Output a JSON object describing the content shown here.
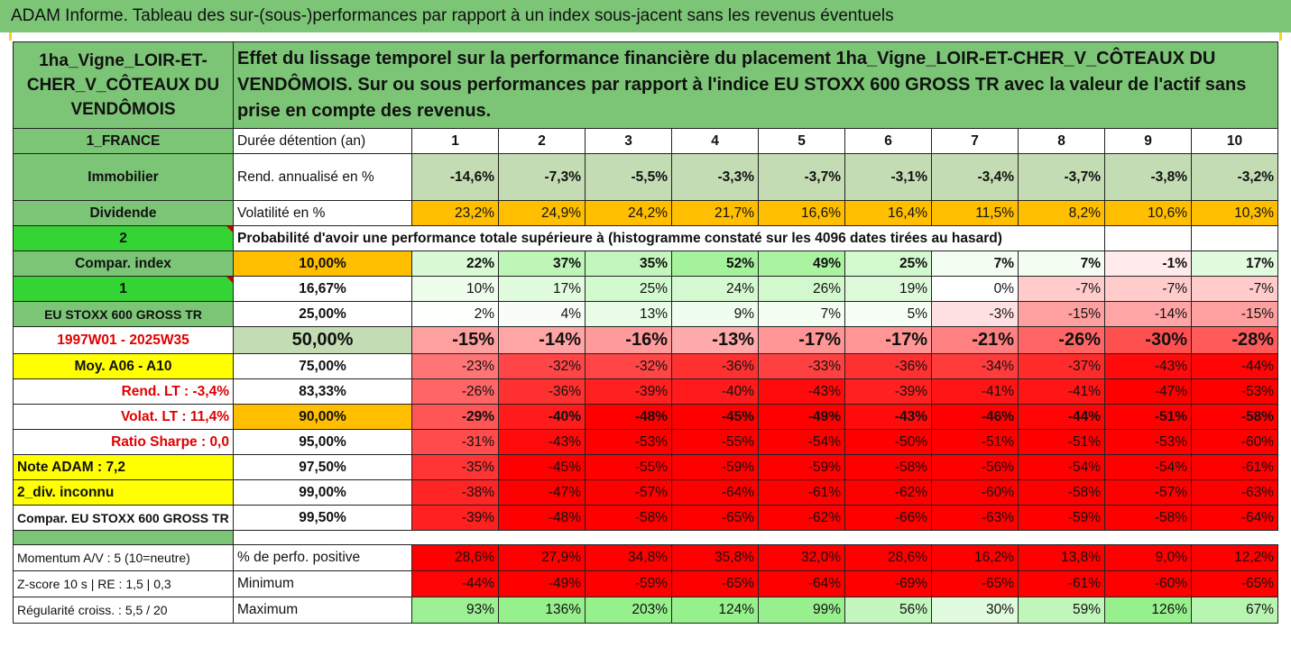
{
  "title": "ADAM Informe. Tableau des sur-(sous-)performances par rapport à un index sous-jacent sans les revenus éventuels",
  "asset_name": "1ha_Vigne_LOIR-ET-CHER_V_CÔTEAUX DU VENDÔMOIS",
  "heading": "Effet du lissage temporel sur la performance financière du placement 1ha_Vigne_LOIR-ET-CHER_V_CÔTEAUX DU VENDÔMOIS. Sur ou sous performances par rapport à l'indice EU STOXX 600 GROSS TR avec la valeur de l'actif sans prise en compte des revenus.",
  "left_labels": {
    "country": "1_FRANCE",
    "category": "Immobilier",
    "dividend": "Dividende",
    "num2": "2",
    "compar_index": "Compar. index",
    "num1": "1",
    "index_name": "EU STOXX 600 GROSS TR",
    "period": "1997W01 - 2025W35",
    "moy": "Moy. A06 - A10",
    "rend_lt": "Rend. LT :   -3,4%",
    "volat_lt": "Volat. LT :   11,4%",
    "sharpe": "Ratio Sharpe :   0,0",
    "note": "Note ADAM : 7,2",
    "div": "2_div. inconnu",
    "compar_full": "Compar. EU STOXX 600 GROSS TR",
    "momentum": "Momentum A/V : 5 (10=neutre)",
    "zscore": "Z-score 10 s  |  RE : 1,5  |  0,3",
    "regularite": "Régularité croiss. : 5,5 / 20"
  },
  "header": {
    "label": "Durée détention (an)",
    "years": [
      "1",
      "2",
      "3",
      "4",
      "5",
      "6",
      "7",
      "8",
      "9",
      "10"
    ]
  },
  "rend": {
    "label": "Rend. annualisé en %",
    "values": [
      "-14,6%",
      "-7,3%",
      "-5,5%",
      "-3,3%",
      "-3,7%",
      "-3,1%",
      "-3,4%",
      "-3,7%",
      "-3,8%",
      "-3,2%"
    ]
  },
  "volat": {
    "label": "Volatilité en %",
    "values": [
      "23,2%",
      "24,9%",
      "24,2%",
      "21,7%",
      "16,6%",
      "16,4%",
      "11,5%",
      "8,2%",
      "10,6%",
      "10,3%"
    ]
  },
  "proba_heading": "Probabilité d'avoir une performance totale supérieure à (histogramme constaté sur les 4096 dates tirées au hasard)",
  "quantiles": [
    {
      "p": "10,00%",
      "v": [
        "22%",
        "37%",
        "35%",
        "52%",
        "49%",
        "25%",
        "7%",
        "7%",
        "-1%",
        "17%"
      ]
    },
    {
      "p": "16,67%",
      "v": [
        "10%",
        "17%",
        "25%",
        "24%",
        "26%",
        "19%",
        "0%",
        "-7%",
        "-7%",
        "-7%"
      ]
    },
    {
      "p": "25,00%",
      "v": [
        "2%",
        "4%",
        "13%",
        "9%",
        "7%",
        "5%",
        "-3%",
        "-15%",
        "-14%",
        "-15%"
      ]
    },
    {
      "p": "50,00%",
      "v": [
        "-15%",
        "-14%",
        "-16%",
        "-13%",
        "-17%",
        "-17%",
        "-21%",
        "-26%",
        "-30%",
        "-28%"
      ]
    },
    {
      "p": "75,00%",
      "v": [
        "-23%",
        "-32%",
        "-32%",
        "-36%",
        "-33%",
        "-36%",
        "-34%",
        "-37%",
        "-43%",
        "-44%"
      ]
    },
    {
      "p": "83,33%",
      "v": [
        "-26%",
        "-36%",
        "-39%",
        "-40%",
        "-43%",
        "-39%",
        "-41%",
        "-41%",
        "-47%",
        "-53%"
      ]
    },
    {
      "p": "90,00%",
      "v": [
        "-29%",
        "-40%",
        "-48%",
        "-45%",
        "-49%",
        "-43%",
        "-46%",
        "-44%",
        "-51%",
        "-58%"
      ]
    },
    {
      "p": "95,00%",
      "v": [
        "-31%",
        "-43%",
        "-53%",
        "-55%",
        "-54%",
        "-50%",
        "-51%",
        "-51%",
        "-53%",
        "-60%"
      ]
    },
    {
      "p": "97,50%",
      "v": [
        "-35%",
        "-45%",
        "-55%",
        "-59%",
        "-59%",
        "-58%",
        "-56%",
        "-54%",
        "-54%",
        "-61%"
      ]
    },
    {
      "p": "99,00%",
      "v": [
        "-38%",
        "-47%",
        "-57%",
        "-64%",
        "-61%",
        "-62%",
        "-60%",
        "-58%",
        "-57%",
        "-63%"
      ]
    },
    {
      "p": "99,50%",
      "v": [
        "-39%",
        "-48%",
        "-58%",
        "-65%",
        "-62%",
        "-66%",
        "-63%",
        "-59%",
        "-58%",
        "-64%"
      ]
    }
  ],
  "stats": [
    {
      "label": "% de perfo. positive",
      "v": [
        "28,6%",
        "27,9%",
        "34,8%",
        "35,8%",
        "32,0%",
        "28,6%",
        "16,2%",
        "13,8%",
        "9,0%",
        "12,2%"
      ]
    },
    {
      "label": "Minimum",
      "v": [
        "-44%",
        "-49%",
        "-59%",
        "-65%",
        "-64%",
        "-69%",
        "-65%",
        "-61%",
        "-60%",
        "-65%"
      ]
    },
    {
      "label": "Maximum",
      "v": [
        "93%",
        "136%",
        "203%",
        "124%",
        "99%",
        "56%",
        "30%",
        "59%",
        "126%",
        "67%"
      ]
    }
  ],
  "colors": {
    "title_green": "#7cc576",
    "orange": "#ffbe00",
    "yellow": "#ffff00",
    "bright_green": "#33d433",
    "red_text": "#e00000"
  }
}
